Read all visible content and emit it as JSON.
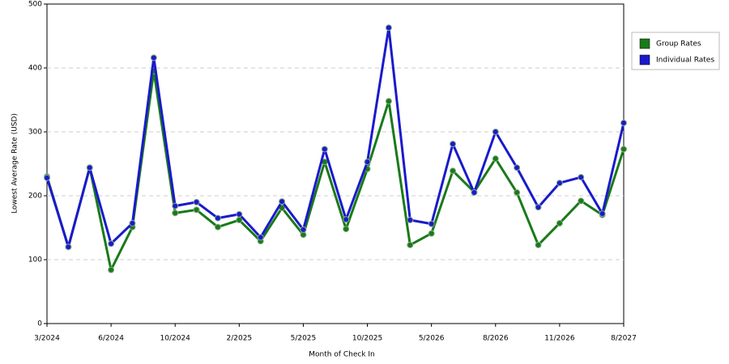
{
  "chart_data": {
    "type": "line",
    "x_label": "Month of Check In",
    "y_label": "Lowest Average Rate (USD)",
    "categories": [
      "3/2024",
      null,
      null,
      "6/2024",
      null,
      null,
      "10/2024",
      null,
      null,
      "2/2025",
      null,
      null,
      "5/2025",
      null,
      null,
      "10/2025",
      null,
      null,
      "5/2026",
      null,
      null,
      "8/2026",
      null,
      null,
      "11/2026",
      null,
      null,
      "8/2027"
    ],
    "series": [
      {
        "name": "Group Rates",
        "color": "#1a7a1a",
        "values": [
          230,
          120,
          244,
          84,
          151,
          395,
          173,
          178,
          151,
          162,
          129,
          181,
          139,
          253,
          148,
          242,
          348,
          123,
          141,
          239,
          206,
          258,
          205,
          123,
          157,
          192,
          170,
          273
        ]
      },
      {
        "name": "Individual Rates",
        "color": "#1a1acc",
        "values": [
          228,
          120,
          244,
          125,
          157,
          416,
          184,
          190,
          165,
          171,
          135,
          191,
          147,
          273,
          163,
          253,
          463,
          162,
          156,
          281,
          205,
          300,
          244,
          182,
          220,
          229,
          172,
          314
        ]
      }
    ],
    "ylim": [
      0,
      500
    ],
    "yticks": [
      0,
      100,
      200,
      300,
      400,
      500
    ],
    "grid": true
  }
}
